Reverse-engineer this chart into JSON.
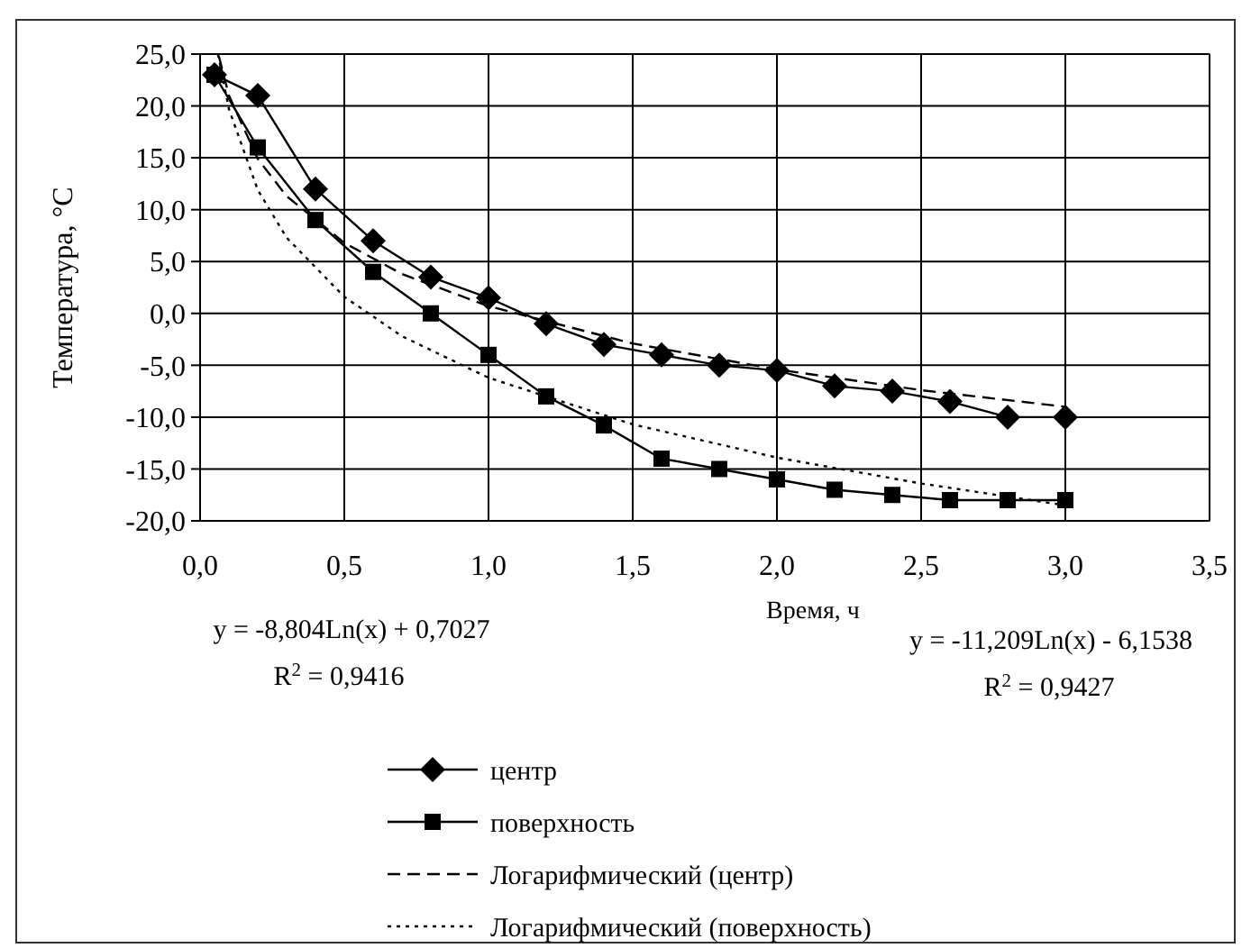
{
  "chart_data": {
    "type": "line",
    "xlabel": "Время, ч",
    "ylabel": "Температура, °C",
    "xlim": [
      0,
      3.5
    ],
    "xticks": [
      {
        "value": 0,
        "label": "0,0"
      },
      {
        "value": 0.5,
        "label": "0,5"
      },
      {
        "value": 1,
        "label": "1,0"
      },
      {
        "value": 1.5,
        "label": "1,5"
      },
      {
        "value": 2,
        "label": "2,0"
      },
      {
        "value": 2.5,
        "label": "2,5"
      },
      {
        "value": 3,
        "label": "3,0"
      },
      {
        "value": 3.5,
        "label": "3,5"
      }
    ],
    "ylim": [
      -20,
      25
    ],
    "yticks": [
      {
        "value": -20,
        "label": "-20,0"
      },
      {
        "value": -15,
        "label": "-15,0"
      },
      {
        "value": -10,
        "label": "-10,0"
      },
      {
        "value": -5,
        "label": "-5,0"
      },
      {
        "value": 0,
        "label": "0,0"
      },
      {
        "value": 5,
        "label": "5,0"
      },
      {
        "value": 10,
        "label": "10,0"
      },
      {
        "value": 15,
        "label": "15,0"
      },
      {
        "value": 20,
        "label": "20,0"
      },
      {
        "value": 25,
        "label": "25,0"
      }
    ],
    "grid": true,
    "legend": "bottom",
    "annotations": [
      "y = -8,804Ln(x) + 0,7027",
      "R$^{2}$ = 0,9416",
      "y = -11,209Ln(x) - 6,1538",
      "R$^{2}$ = 0,9427"
    ],
    "series": [
      {
        "name": "центр",
        "color": "#000000",
        "marker": "diamond",
        "line_style": "solid",
        "x": [
          0.05,
          0.2,
          0.4,
          0.6,
          0.8,
          1.0,
          1.2,
          1.4,
          1.6,
          1.8,
          2.0,
          2.2,
          2.4,
          2.6,
          2.8,
          3.0
        ],
        "values": [
          23,
          21,
          12,
          7,
          3.5,
          1.5,
          -1,
          -3,
          -4,
          -5,
          -5.5,
          -7,
          -7.5,
          -8.5,
          -10,
          -10
        ]
      },
      {
        "name": "поверхность",
        "color": "#000000",
        "marker": "square",
        "line_style": "solid",
        "x": [
          0.05,
          0.2,
          0.4,
          0.6,
          0.8,
          1.0,
          1.2,
          1.4,
          1.6,
          1.8,
          2.0,
          2.2,
          2.4,
          2.6,
          2.8,
          3.0
        ],
        "values": [
          23,
          16,
          9,
          4,
          0,
          -4,
          -8,
          -10.8,
          -14,
          -15,
          -16,
          -17,
          -17.5,
          -18,
          -18,
          -18
        ]
      },
      {
        "name": "Логарифмический (центр)",
        "color": "#000000",
        "marker": "none",
        "line_style": "dashed",
        "x": [
          0.065,
          0.1,
          0.2,
          0.3,
          0.5,
          0.7,
          1.0,
          1.5,
          2.0,
          2.5,
          3.0
        ],
        "values": [
          24.8,
          21.0,
          14.9,
          11.3,
          6.8,
          3.8,
          0.7,
          -2.9,
          -5.4,
          -7.4,
          -9.0
        ]
      },
      {
        "name": "Логарифмический (поверхность)",
        "color": "#000000",
        "marker": "none",
        "line_style": "dotted",
        "x": [
          0.062,
          0.1,
          0.2,
          0.3,
          0.5,
          0.7,
          1.0,
          1.5,
          2.0,
          2.5,
          3.0
        ],
        "values": [
          25,
          19.7,
          11.9,
          7.3,
          1.6,
          -2.2,
          -6.2,
          -10.7,
          -13.9,
          -16.4,
          -18.5
        ]
      }
    ]
  }
}
